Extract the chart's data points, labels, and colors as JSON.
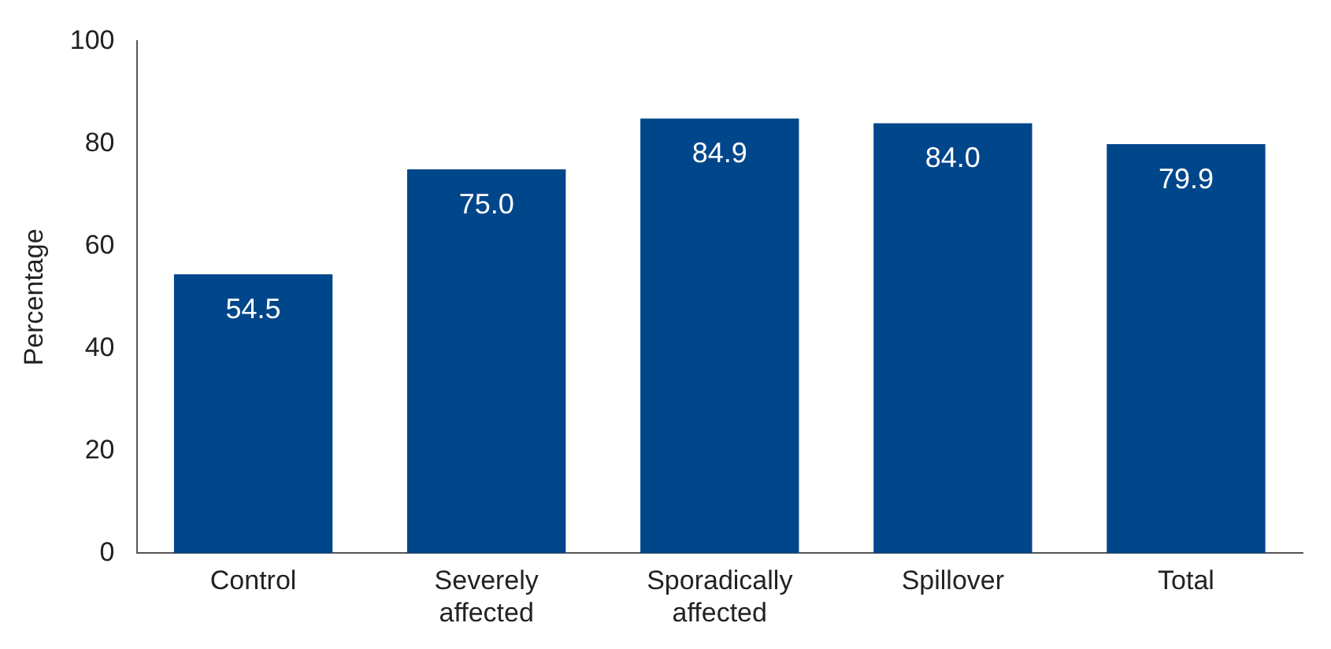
{
  "chart_data": {
    "type": "bar",
    "ylabel": "Percentage",
    "categories": [
      "Control",
      "Severely affected",
      "Sporadically affected",
      "Spillover",
      "Total"
    ],
    "values": [
      54.5,
      75.0,
      84.9,
      84.0,
      79.9
    ],
    "value_labels": [
      "54.5",
      "75.0",
      "84.9",
      "84.0",
      "79.9"
    ],
    "color": "#00468b",
    "ylim": [
      0,
      100
    ],
    "yticks": [
      0,
      20,
      40,
      60,
      80,
      100
    ],
    "grid": false,
    "legend": false
  }
}
